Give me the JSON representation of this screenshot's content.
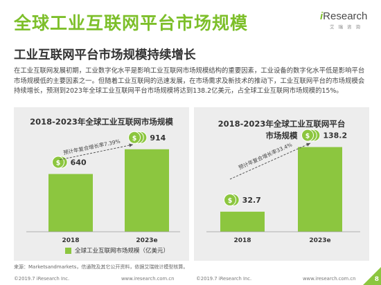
{
  "title": "全球工业互联网平台市场规模",
  "logo": {
    "brand_prefix": "i",
    "brand_rest": "Research",
    "sub": "艾瑞咨询"
  },
  "subtitle": "工业互联网平台市场规模持续增长",
  "paragraph": "在工业互联网发展初期，工业数字化水平是影响工业互联网市场规模结构的重要因素，工业设备的数字化水平低是影响平台市场规模低的主要因素之一。但随着工业互联网的迅速发展，在市场需求及新技术的推动下，工业互联网平台的市场规模会持续增长，预测到2023年全球工业互联网平台市场规模将达到138.2亿美元，占全球工业互联网市场规模的15%。",
  "colors": {
    "accent": "#7dbf2a",
    "bar": "#8cc63f",
    "coin": "#8cc63f",
    "panel": "#ededed"
  },
  "chart_data": [
    {
      "type": "bar",
      "title": "2018-2023年全球工业互联网市场规模",
      "categories": [
        "2018",
        "2023e"
      ],
      "values": [
        640,
        914
      ],
      "value_labels": [
        "640",
        "914"
      ],
      "cagr_label": "预计年复合增长率7.39%",
      "series": [
        {
          "name": "全球工业互联网市场规模（亿美元）",
          "values": [
            640,
            914
          ]
        }
      ],
      "ylim": [
        0,
        1150
      ]
    },
    {
      "type": "bar",
      "title_lines": [
        "2018-2023年全球工业互联网平台",
        "市场规模"
      ],
      "categories": [
        "2018",
        "2023e"
      ],
      "values": [
        32.7,
        138.2
      ],
      "value_labels": [
        "32.7",
        "138.2"
      ],
      "cagr_label": "预计年复合增长率33.4%",
      "ylim": [
        0,
        175
      ]
    }
  ],
  "legend": {
    "label": "全球工业互联网市场规模（亿美元）"
  },
  "source": "来源：Marketsandmarkets，信通院及其它公开资料，依据艾瑞统计模型核算。",
  "footer": {
    "left": "©2019.7 iResearch Inc.",
    "center_url": "www.iresearch.com.cn",
    "center_copy": "©2019.7 iResearch Inc.",
    "right_url": "www.iresearch.com.cn"
  },
  "page_number": "8"
}
